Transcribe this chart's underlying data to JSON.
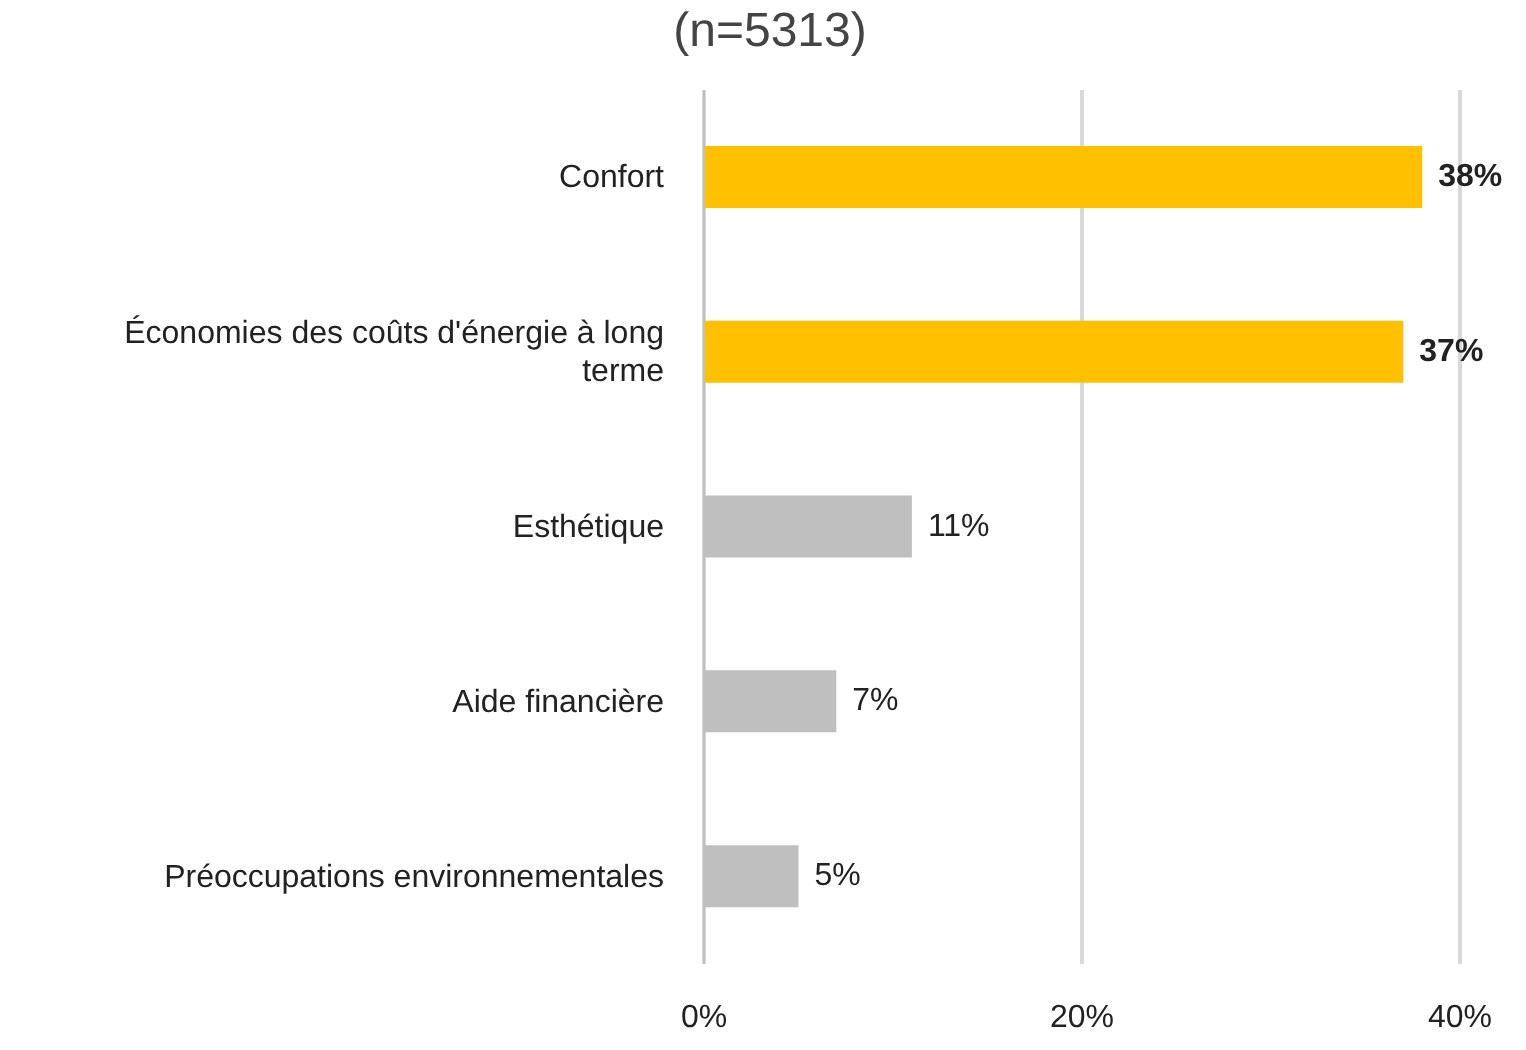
{
  "chart_data": {
    "type": "bar",
    "orientation": "horizontal",
    "title": "(n=5313)",
    "categories": [
      "Confort",
      "Économies des coûts d'énergie à long terme",
      "Esthétique",
      "Aide financière",
      "Préoccupations environnementales"
    ],
    "values": [
      38,
      37,
      11,
      7,
      5
    ],
    "colors": [
      "#ffc000",
      "#ffc000",
      "#bfbfbf",
      "#bfbfbf",
      "#bfbfbf"
    ],
    "value_labels": [
      "38%",
      "37%",
      "11%",
      "7%",
      "5%"
    ],
    "xlim": [
      0,
      40
    ],
    "xticks": [
      {
        "value": 0,
        "label": "0%"
      },
      {
        "value": 20,
        "label": "20%"
      },
      {
        "value": 40,
        "label": "40%"
      }
    ],
    "grid": "x",
    "legend": false
  }
}
